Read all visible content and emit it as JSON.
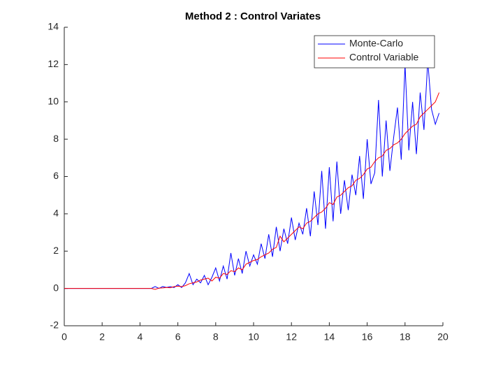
{
  "chart_data": {
    "type": "line",
    "title": "Method 2 : Control Variates",
    "x": [
      0,
      0.2,
      0.4,
      0.6,
      0.8,
      1,
      1.2,
      1.4,
      1.6,
      1.8,
      2,
      2.2,
      2.4,
      2.6,
      2.8,
      3,
      3.2,
      3.4,
      3.6,
      3.8,
      4,
      4.2,
      4.4,
      4.6,
      4.8,
      5,
      5.2,
      5.4,
      5.6,
      5.8,
      6,
      6.2,
      6.4,
      6.6,
      6.8,
      7,
      7.2,
      7.4,
      7.6,
      7.8,
      8,
      8.2,
      8.4,
      8.6,
      8.8,
      9,
      9.2,
      9.4,
      9.6,
      9.8,
      10,
      10.2,
      10.4,
      10.6,
      10.8,
      11,
      11.2,
      11.4,
      11.6,
      11.8,
      12,
      12.2,
      12.4,
      12.6,
      12.8,
      13,
      13.2,
      13.4,
      13.6,
      13.8,
      14,
      14.2,
      14.4,
      14.6,
      14.8,
      15,
      15.2,
      15.4,
      15.6,
      15.8,
      16,
      16.2,
      16.4,
      16.6,
      16.8,
      17,
      17.2,
      17.4,
      17.6,
      17.8,
      18,
      18.2,
      18.4,
      18.6,
      18.8,
      19,
      19.2,
      19.4,
      19.6,
      19.8
    ],
    "series": [
      {
        "name": "Monte-Carlo",
        "color": "#0000ff",
        "values": [
          0,
          0,
          0,
          0,
          0,
          0,
          0,
          0,
          0,
          0,
          0,
          0,
          0,
          0,
          0,
          0,
          0,
          0,
          0,
          0,
          0,
          0,
          0,
          0,
          0.1,
          0,
          0.1,
          0.05,
          0.1,
          0.05,
          0.2,
          0.05,
          0.3,
          0.8,
          0.2,
          0.5,
          0.3,
          0.7,
          0.2,
          0.6,
          1.1,
          0.4,
          1.2,
          0.5,
          1.9,
          0.7,
          1.6,
          0.8,
          2.0,
          1.2,
          1.8,
          1.3,
          2.4,
          1.6,
          2.9,
          1.7,
          3.3,
          2.0,
          3.2,
          2.4,
          3.8,
          2.6,
          3.5,
          2.9,
          4.3,
          2.8,
          5.2,
          3.4,
          6.3,
          3.2,
          6.5,
          3.6,
          6.8,
          4.0,
          5.8,
          4.2,
          6.1,
          5.0,
          7.1,
          4.8,
          8.0,
          5.6,
          6.2,
          10.1,
          6.0,
          9.0,
          6.3,
          8.1,
          9.7,
          6.9,
          12.0,
          7.4,
          10.0,
          7.2,
          10.5,
          8.5,
          12.2,
          9.6,
          8.8,
          9.4
        ]
      },
      {
        "name": "Control Variable",
        "color": "#ff0000",
        "values": [
          0,
          0,
          0,
          0,
          0,
          0,
          0,
          0,
          0,
          0,
          0,
          0,
          0,
          0,
          0,
          0,
          0,
          0,
          0,
          0,
          0,
          0,
          0,
          0,
          -0.05,
          0.02,
          0.03,
          0.05,
          0.04,
          0.1,
          0.12,
          0.1,
          0.15,
          0.25,
          0.3,
          0.35,
          0.45,
          0.5,
          0.55,
          0.4,
          0.6,
          0.55,
          0.8,
          0.75,
          0.95,
          0.9,
          1.1,
          1.0,
          1.3,
          1.4,
          1.5,
          1.55,
          1.7,
          1.8,
          1.9,
          2.1,
          2.2,
          2.8,
          2.5,
          2.7,
          2.9,
          3.1,
          3.3,
          3.2,
          3.5,
          3.6,
          3.8,
          4.0,
          4.1,
          4.3,
          4.6,
          4.5,
          4.9,
          5.0,
          5.2,
          5.4,
          5.5,
          5.8,
          5.9,
          6.1,
          6.4,
          6.5,
          6.8,
          7.0,
          7.1,
          7.4,
          7.5,
          7.7,
          7.8,
          8.0,
          8.3,
          8.5,
          8.7,
          8.8,
          9.2,
          9.4,
          9.6,
          9.8,
          10.0,
          10.5
        ]
      }
    ],
    "xlim": [
      0,
      20
    ],
    "xticks": [
      0,
      2,
      4,
      6,
      8,
      10,
      12,
      14,
      16,
      18,
      20
    ],
    "ylim": [
      -2,
      14
    ],
    "yticks": [
      -2,
      0,
      2,
      4,
      6,
      8,
      10,
      12,
      14
    ],
    "legend": "upper right"
  }
}
